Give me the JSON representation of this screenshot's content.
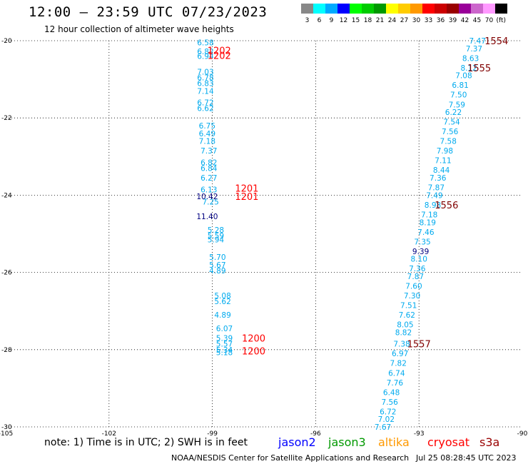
{
  "title": "12:00 – 23:59 UTC 07/23/2023",
  "subtitle": "12 hour collection of altimeter wave heights",
  "note": "note: 1) Time is in UTC; 2) SWH is in feet",
  "footer": {
    "credit": "NOAA/NESDIS Center for Satellite Applications and Research",
    "timestamp": "Jul 25 08:28:45 UTC 2023"
  },
  "satellites": [
    {
      "name": "jason2",
      "color": "#0000ff"
    },
    {
      "name": "jason3",
      "color": "#009900"
    },
    {
      "name": "altika",
      "color": "#ff9900"
    },
    {
      "name": "cryosat",
      "color": "#ff0000"
    },
    {
      "name": "s3a",
      "color": "#990000"
    }
  ],
  "colorbar": {
    "unit": "(ft)",
    "bins": [
      {
        "label": "3",
        "color": "#888888"
      },
      {
        "label": "6",
        "color": "#00ffff"
      },
      {
        "label": "9",
        "color": "#00aaff"
      },
      {
        "label": "12",
        "color": "#0000ff"
      },
      {
        "label": "15",
        "color": "#00ff00"
      },
      {
        "label": "18",
        "color": "#00cc00"
      },
      {
        "label": "21",
        "color": "#009900"
      },
      {
        "label": "24",
        "color": "#ffff00"
      },
      {
        "label": "27",
        "color": "#ffcc00"
      },
      {
        "label": "30",
        "color": "#ff9900"
      },
      {
        "label": "33",
        "color": "#ff0000"
      },
      {
        "label": "36",
        "color": "#cc0000"
      },
      {
        "label": "39",
        "color": "#990000"
      },
      {
        "label": "42",
        "color": "#990099"
      },
      {
        "label": "45",
        "color": "#cc66cc"
      },
      {
        "label": "70",
        "color": "#ff99ff"
      },
      {
        "label": "",
        "color": "#000000"
      }
    ]
  },
  "chart_data": {
    "type": "scatter",
    "xlim": [
      -105,
      -90
    ],
    "ylim": [
      -30,
      -20
    ],
    "xticks": [
      "-105",
      "-102",
      "-99",
      "-96",
      "-93",
      "-90"
    ],
    "yticks": [
      "-20",
      "-22",
      "-24",
      "-26",
      "-28",
      "-30"
    ],
    "grid": true,
    "colors": {
      "cyan": "#00aaee",
      "navy": "#000080",
      "red": "#ff0000",
      "maroon": "#800000"
    },
    "tracks": [
      {
        "color": "cyan",
        "points": [
          {
            "x": -99.2,
            "y": -20.05,
            "v": "6.58"
          },
          {
            "x": -99.2,
            "y": -20.28,
            "v": "6.82"
          },
          {
            "x": -99.2,
            "y": -20.4,
            "v": "6.94"
          },
          {
            "x": -99.2,
            "y": -20.8,
            "v": "7.03"
          },
          {
            "x": -99.2,
            "y": -20.95,
            "v": "6.78"
          },
          {
            "x": -99.2,
            "y": -21.1,
            "v": "6.83"
          },
          {
            "x": -99.2,
            "y": -21.3,
            "v": "7.14"
          },
          {
            "x": -99.2,
            "y": -21.6,
            "v": "6.72"
          },
          {
            "x": -99.2,
            "y": -21.75,
            "v": "6.62"
          },
          {
            "x": -99.15,
            "y": -22.2,
            "v": "6.75"
          },
          {
            "x": -99.15,
            "y": -22.4,
            "v": "6.49"
          },
          {
            "x": -99.15,
            "y": -22.6,
            "v": "7.18"
          },
          {
            "x": -99.1,
            "y": -22.85,
            "v": "7.37"
          },
          {
            "x": -99.1,
            "y": -23.15,
            "v": "6.82"
          },
          {
            "x": -99.1,
            "y": -23.3,
            "v": "6.84"
          },
          {
            "x": -99.1,
            "y": -23.55,
            "v": "6.27"
          },
          {
            "x": -99.1,
            "y": -23.85,
            "v": "6.13"
          },
          {
            "x": -99.05,
            "y": -24.17,
            "v": "7.25"
          },
          {
            "x": -98.9,
            "y": -24.9,
            "v": "5.28"
          },
          {
            "x": -98.9,
            "y": -25.05,
            "v": "5.59"
          },
          {
            "x": -98.9,
            "y": -25.15,
            "v": "5.94"
          },
          {
            "x": -98.85,
            "y": -25.6,
            "v": "5.70"
          },
          {
            "x": -98.85,
            "y": -25.8,
            "v": "5.67"
          },
          {
            "x": -98.85,
            "y": -25.95,
            "v": "4.89"
          },
          {
            "x": -98.7,
            "y": -26.6,
            "v": "5.08"
          },
          {
            "x": -98.7,
            "y": -26.75,
            "v": "5.62"
          },
          {
            "x": -98.7,
            "y": -27.1,
            "v": "4.89"
          },
          {
            "x": -98.65,
            "y": -27.45,
            "v": "6.07"
          },
          {
            "x": -98.65,
            "y": -27.7,
            "v": "5.39"
          },
          {
            "x": -98.65,
            "y": -27.85,
            "v": "5.57"
          },
          {
            "x": -98.65,
            "y": -28.0,
            "v": "5.34"
          },
          {
            "x": -98.65,
            "y": -28.07,
            "v": "5.18"
          }
        ]
      },
      {
        "color": "navy",
        "points": [
          {
            "x": -99.15,
            "y": -24.03,
            "v": "10.42"
          },
          {
            "x": -99.15,
            "y": -24.55,
            "v": "11.40"
          }
        ]
      },
      {
        "color": "cyan",
        "points": [
          {
            "x": -91.3,
            "y": -20.0,
            "v": "7.47"
          },
          {
            "x": -91.4,
            "y": -20.2,
            "v": "7.37"
          },
          {
            "x": -91.5,
            "y": -20.45,
            "v": "8.63"
          },
          {
            "x": -91.55,
            "y": -20.7,
            "v": "8.12"
          },
          {
            "x": -91.7,
            "y": -20.9,
            "v": "7.08"
          },
          {
            "x": -91.8,
            "y": -21.15,
            "v": "6.81"
          },
          {
            "x": -91.85,
            "y": -21.4,
            "v": "7.50"
          },
          {
            "x": -91.9,
            "y": -21.65,
            "v": "7.59"
          },
          {
            "x": -92.0,
            "y": -21.85,
            "v": "6.22"
          },
          {
            "x": -92.05,
            "y": -22.1,
            "v": "7.54"
          },
          {
            "x": -92.1,
            "y": -22.35,
            "v": "7.56"
          },
          {
            "x": -92.15,
            "y": -22.6,
            "v": "7.58"
          },
          {
            "x": -92.25,
            "y": -22.85,
            "v": "7.98"
          },
          {
            "x": -92.3,
            "y": -23.1,
            "v": "7.11"
          },
          {
            "x": -92.35,
            "y": -23.35,
            "v": "8.44"
          },
          {
            "x": -92.45,
            "y": -23.55,
            "v": "7.36"
          },
          {
            "x": -92.5,
            "y": -23.8,
            "v": "7.87"
          },
          {
            "x": -92.55,
            "y": -24.0,
            "v": "7.49"
          },
          {
            "x": -92.6,
            "y": -24.25,
            "v": "8.98"
          },
          {
            "x": -92.7,
            "y": -24.5,
            "v": "7.18"
          },
          {
            "x": -92.75,
            "y": -24.7,
            "v": "8.19"
          },
          {
            "x": -92.8,
            "y": -24.95,
            "v": "7.46"
          },
          {
            "x": -92.9,
            "y": -25.2,
            "v": "7.35"
          },
          {
            "x": -93.0,
            "y": -25.65,
            "v": "8.10"
          },
          {
            "x": -93.05,
            "y": -25.9,
            "v": "7.36"
          },
          {
            "x": -93.1,
            "y": -26.1,
            "v": "7.87"
          },
          {
            "x": -93.15,
            "y": -26.35,
            "v": "7.60"
          },
          {
            "x": -93.2,
            "y": -26.6,
            "v": "7.30"
          },
          {
            "x": -93.3,
            "y": -26.85,
            "v": "7.51"
          },
          {
            "x": -93.35,
            "y": -27.1,
            "v": "7.62"
          },
          {
            "x": -93.4,
            "y": -27.35,
            "v": "8.05"
          },
          {
            "x": -93.45,
            "y": -27.55,
            "v": "8.82"
          },
          {
            "x": -93.5,
            "y": -27.85,
            "v": "7.38"
          },
          {
            "x": -93.55,
            "y": -28.1,
            "v": "6.97"
          },
          {
            "x": -93.6,
            "y": -28.35,
            "v": "7.82"
          },
          {
            "x": -93.65,
            "y": -28.6,
            "v": "6.74"
          },
          {
            "x": -93.7,
            "y": -28.85,
            "v": "7.76"
          },
          {
            "x": -93.8,
            "y": -29.1,
            "v": "6.48"
          },
          {
            "x": -93.85,
            "y": -29.35,
            "v": "7.56"
          },
          {
            "x": -93.9,
            "y": -29.6,
            "v": "6.72"
          },
          {
            "x": -93.95,
            "y": -29.8,
            "v": "7.02"
          },
          {
            "x": -94.05,
            "y": -30.0,
            "v": "7.67"
          }
        ]
      },
      {
        "color": "navy",
        "points": [
          {
            "x": -92.95,
            "y": -25.45,
            "v": "9.39"
          }
        ]
      }
    ],
    "time_labels": [
      {
        "x": -98.8,
        "y": -20.25,
        "v": "1202",
        "color": "red"
      },
      {
        "x": -98.8,
        "y": -20.38,
        "v": "1202",
        "color": "red"
      },
      {
        "x": -98.0,
        "y": -23.82,
        "v": "1201",
        "color": "red"
      },
      {
        "x": -98.0,
        "y": -24.03,
        "v": "1201",
        "color": "red"
      },
      {
        "x": -97.8,
        "y": -27.7,
        "v": "1200",
        "color": "red"
      },
      {
        "x": -97.8,
        "y": -28.03,
        "v": "1200",
        "color": "red"
      },
      {
        "x": -90.75,
        "y": -20.0,
        "v": "1554",
        "color": "maroon"
      },
      {
        "x": -91.25,
        "y": -20.7,
        "v": "1555",
        "color": "maroon"
      },
      {
        "x": -92.2,
        "y": -24.25,
        "v": "1556",
        "color": "maroon"
      },
      {
        "x": -93.0,
        "y": -27.85,
        "v": "1557",
        "color": "maroon"
      }
    ]
  }
}
